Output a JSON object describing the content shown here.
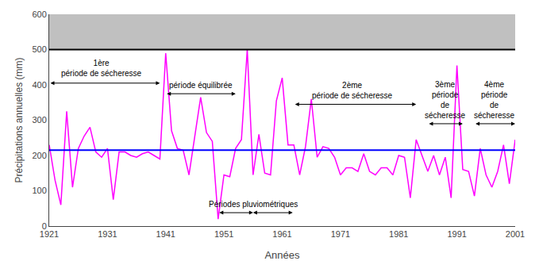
{
  "chart_data": {
    "type": "line",
    "x": [
      1921,
      1922,
      1923,
      1924,
      1925,
      1926,
      1927,
      1928,
      1929,
      1930,
      1931,
      1932,
      1933,
      1934,
      1935,
      1936,
      1937,
      1938,
      1939,
      1940,
      1941,
      1942,
      1943,
      1944,
      1945,
      1946,
      1947,
      1948,
      1949,
      1950,
      1951,
      1952,
      1953,
      1954,
      1955,
      1956,
      1957,
      1958,
      1959,
      1960,
      1961,
      1962,
      1963,
      1964,
      1965,
      1966,
      1967,
      1968,
      1969,
      1970,
      1971,
      1972,
      1973,
      1974,
      1975,
      1976,
      1977,
      1978,
      1979,
      1980,
      1981,
      1982,
      1983,
      1984,
      1985,
      1986,
      1987,
      1988,
      1989,
      1990,
      1991,
      1992,
      1993,
      1994,
      1995,
      1996,
      1997,
      1998,
      1999,
      2000,
      2001
    ],
    "values": [
      230,
      130,
      60,
      325,
      110,
      220,
      255,
      280,
      210,
      195,
      220,
      75,
      210,
      210,
      200,
      195,
      205,
      210,
      200,
      190,
      490,
      270,
      220,
      215,
      145,
      250,
      365,
      265,
      240,
      20,
      145,
      140,
      220,
      245,
      500,
      145,
      260,
      150,
      145,
      355,
      420,
      230,
      230,
      145,
      225,
      360,
      195,
      225,
      220,
      195,
      145,
      165,
      165,
      155,
      205,
      155,
      145,
      165,
      165,
      145,
      200,
      195,
      80,
      245,
      200,
      155,
      200,
      145,
      195,
      80,
      455,
      160,
      155,
      85,
      220,
      145,
      110,
      155,
      230,
      120,
      245
    ],
    "color": "#FF00FF",
    "xlabel": "Années",
    "ylabel": "Précipitations annuelles (mm)",
    "xlim": [
      1921,
      2001
    ],
    "ylim": [
      0,
      600
    ],
    "xticks": [
      1921,
      1931,
      1941,
      1951,
      1961,
      1971,
      1981,
      1991,
      2001
    ],
    "yticks": [
      0,
      100,
      200,
      300,
      400,
      500,
      600
    ],
    "grid": false,
    "band": {
      "from": 500,
      "color": "#c0c0c0"
    },
    "reference_lines": [
      {
        "y": 215,
        "color": "#0000FF"
      },
      {
        "y": 500,
        "color": "#000000"
      }
    ],
    "annotations": [
      {
        "text": "1ère\npériode de sécheresse",
        "x": 1930,
        "y": 415,
        "arrows": [
          [
            1921,
            1940,
            405
          ]
        ]
      },
      {
        "text": "période équilibrée",
        "x": 1947,
        "y": 382,
        "arrows": [
          [
            1941,
            1953,
            375
          ]
        ]
      },
      {
        "text": "2ème\npériode de sécheresse",
        "x": 1973,
        "y": 352,
        "arrows": [
          [
            1963,
            1984,
            345
          ]
        ]
      },
      {
        "text": "3ème\npériode\nde\nsécheresse",
        "x": 1989,
        "y": 297,
        "arrows": [
          [
            1986,
            1992,
            290
          ]
        ]
      },
      {
        "text": "4ème\npériode\nde\nsécheresse",
        "x": 1997.5,
        "y": 297,
        "arrows": [
          [
            1994,
            2001,
            290
          ]
        ]
      },
      {
        "text": "Périodes pluviométriques",
        "x": 1956,
        "y": 46,
        "arrows": [
          [
            1950,
            1956,
            38
          ],
          [
            1963,
            1956,
            38
          ]
        ]
      }
    ]
  }
}
